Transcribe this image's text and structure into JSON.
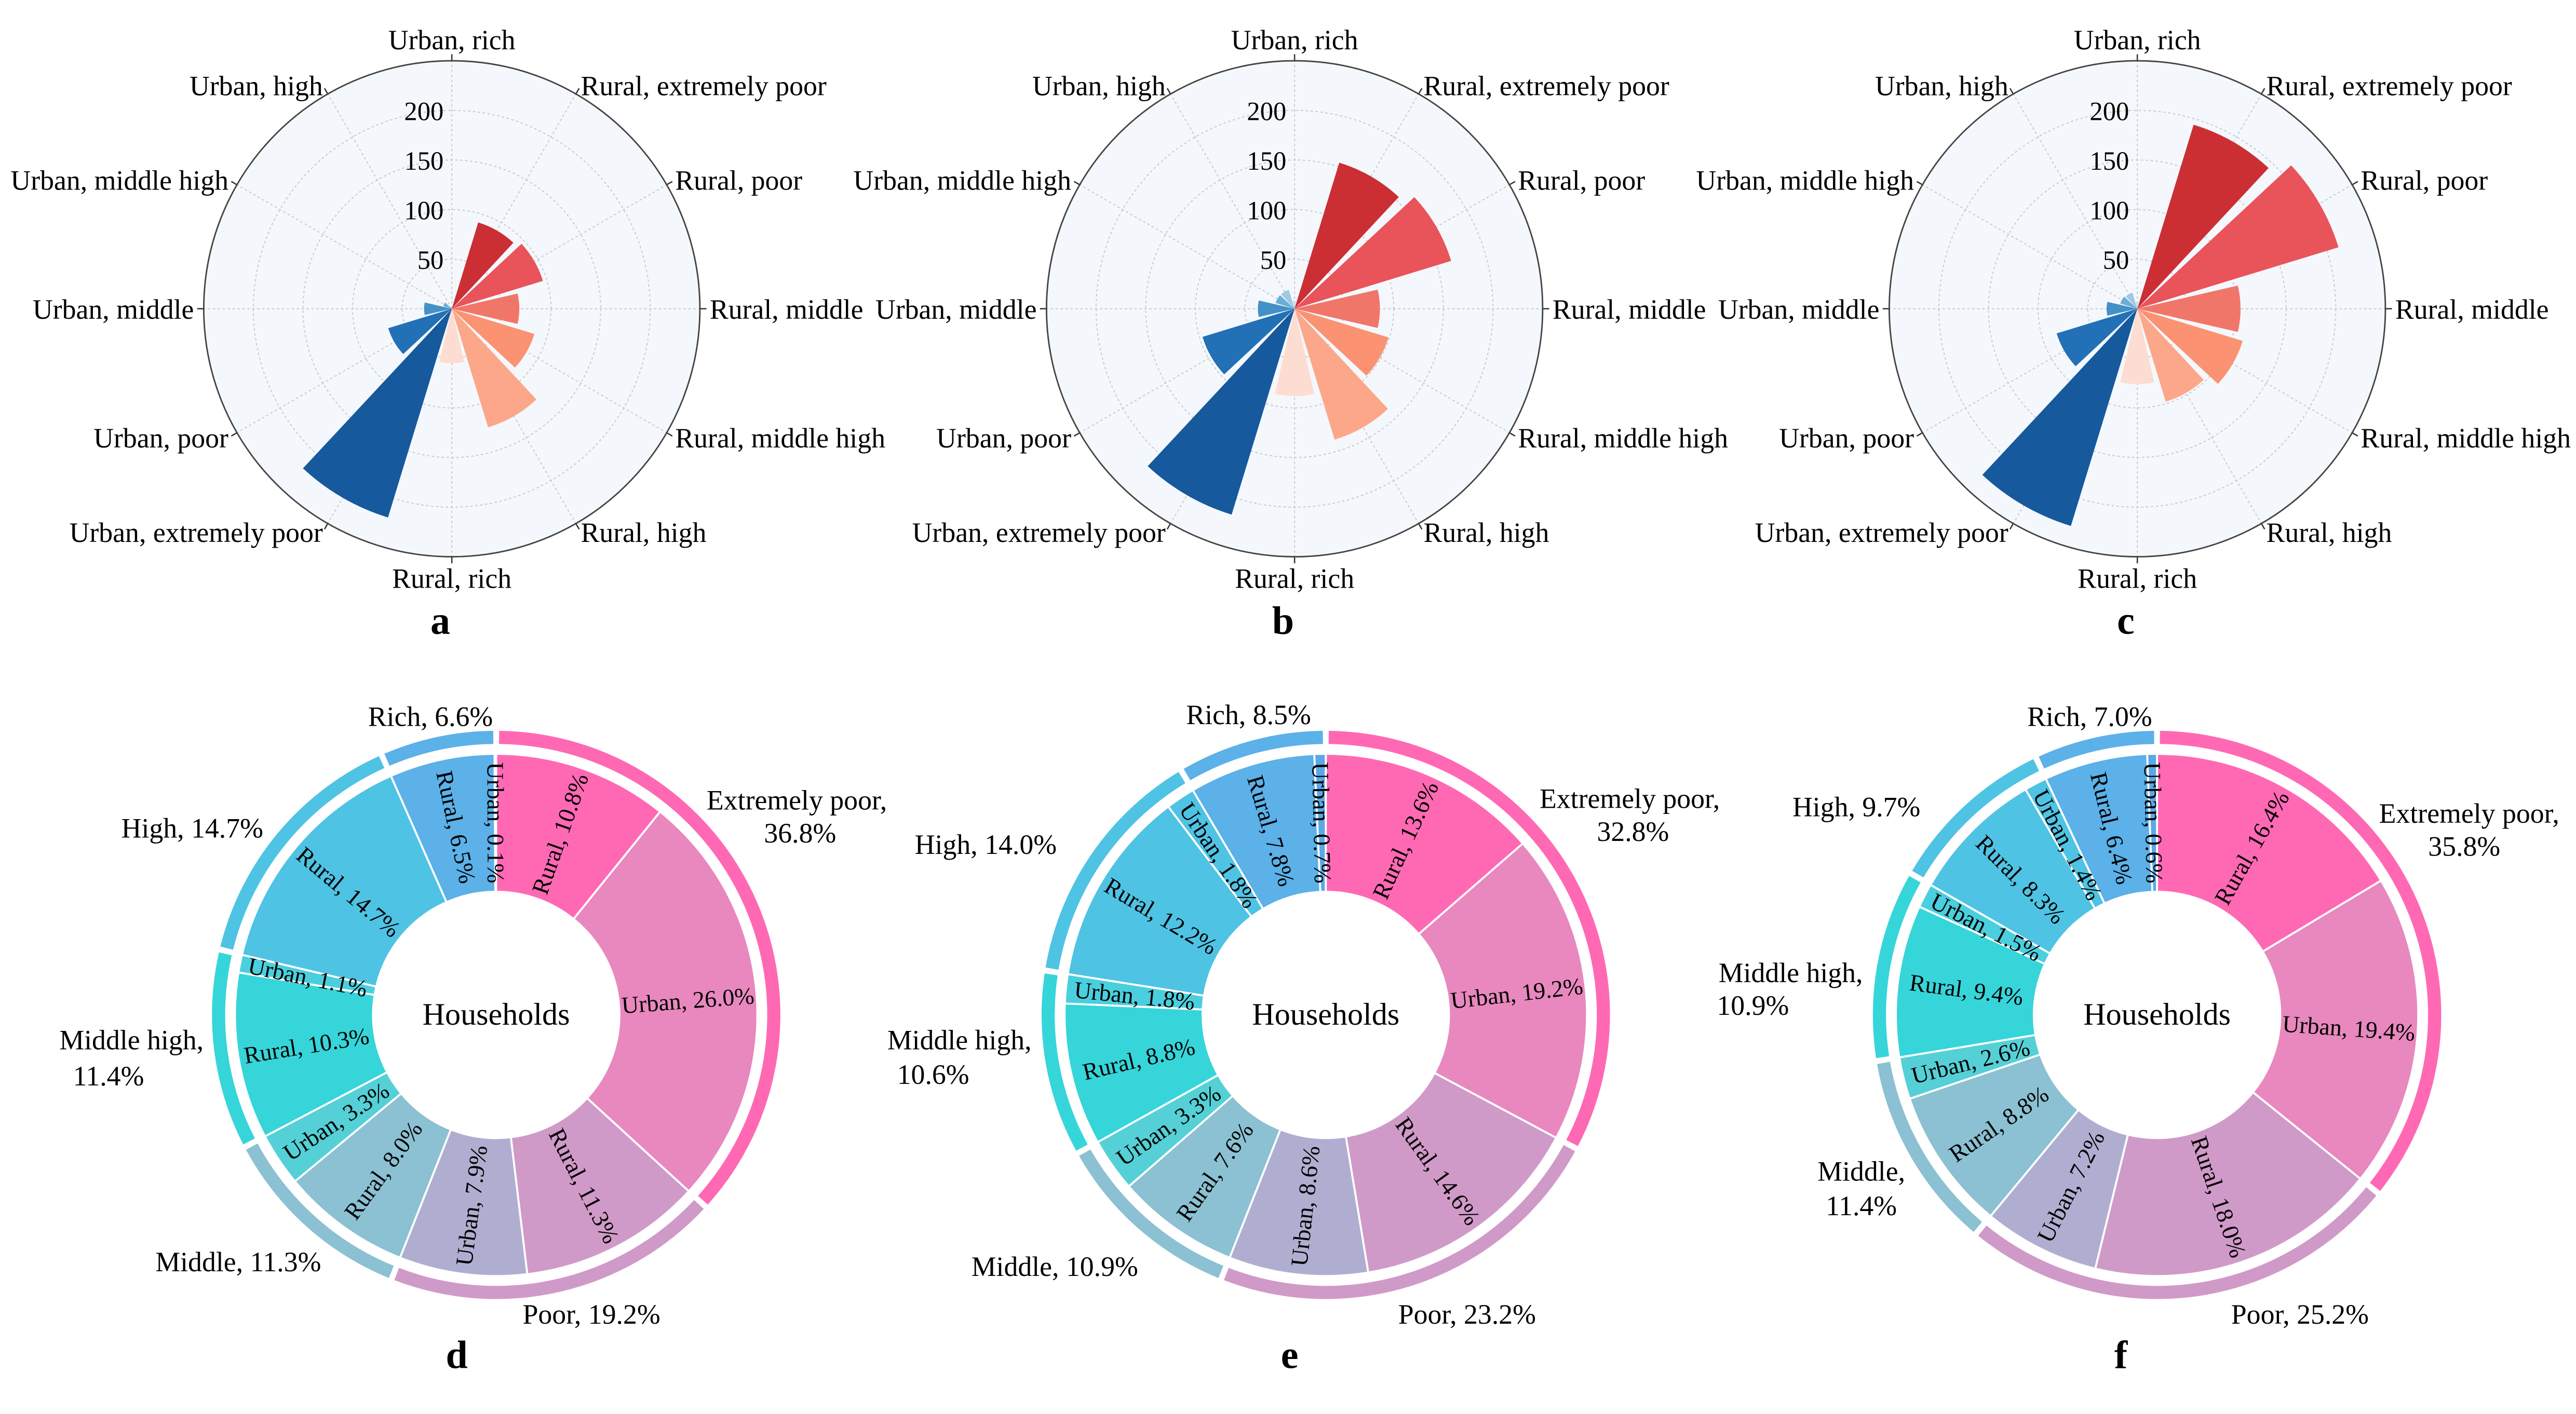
{
  "chart_data": [
    {
      "type": "bar",
      "projection": "polar",
      "panel": "a",
      "categories": [
        "Urban, rich",
        "Rural, extremely poor",
        "Rural, poor",
        "Rural, middle",
        "Rural, middle high",
        "Rural, high",
        "Rural, rich",
        "Urban, extremely poor",
        "Urban, poor",
        "Urban, middle",
        "Urban, middle high",
        "Urban, high"
      ],
      "values": [
        1,
        91,
        96,
        68,
        87,
        125,
        55,
        220,
        67,
        28,
        9,
        0
      ],
      "rticks": [
        "50",
        "100",
        "150",
        "200"
      ],
      "rlim": [
        0,
        250
      ],
      "grid": true
    },
    {
      "type": "bar",
      "projection": "polar",
      "panel": "b",
      "categories": [
        "Urban, rich",
        "Rural, extremely poor",
        "Rural, poor",
        "Rural, middle",
        "Rural, middle high",
        "Rural, high",
        "Rural, rich",
        "Urban, extremely poor",
        "Urban, poor",
        "Urban, middle",
        "Urban, middle high",
        "Urban, high"
      ],
      "values": [
        8,
        154,
        165,
        86,
        99,
        138,
        88,
        217,
        97,
        37,
        20,
        20
      ],
      "rticks": [
        "50",
        "100",
        "150",
        "200"
      ],
      "rlim": [
        0,
        250
      ],
      "grid": true
    },
    {
      "type": "bar",
      "projection": "polar",
      "panel": "c",
      "categories": [
        "Urban, rich",
        "Rural, extremely poor",
        "Rural, poor",
        "Rural, middle",
        "Rural, middle high",
        "Rural, high",
        "Rural, rich",
        "Urban, extremely poor",
        "Urban, poor",
        "Urban, middle",
        "Urban, middle high",
        "Urban, high"
      ],
      "values": [
        7,
        194,
        212,
        104,
        111,
        98,
        76,
        229,
        85,
        31,
        18,
        17
      ],
      "rticks": [
        "50",
        "100",
        "150",
        "200"
      ],
      "rlim": [
        0,
        250
      ],
      "grid": true
    },
    {
      "type": "pie",
      "style": "nested-donut",
      "panel": "d",
      "center_label": "Households",
      "groups": [
        {
          "label": [
            "Extremely poor,",
            "36.8%"
          ],
          "value": 36.8
        },
        {
          "label": [
            "Poor, 19.2%"
          ],
          "value": 19.2
        },
        {
          "label": [
            "Middle, 11.3%"
          ],
          "value": 11.3
        },
        {
          "label": [
            "Middle high,",
            "11.4%"
          ],
          "value": 11.4
        },
        {
          "label": [
            "High, 14.7%"
          ],
          "value": 14.7
        },
        {
          "label": [
            "Rich, 6.6%"
          ],
          "value": 6.6
        }
      ],
      "slices": [
        {
          "label": "Rural, 10.8%",
          "value": 10.8,
          "group": 0,
          "kind": "rural"
        },
        {
          "label": "Urban, 26.0%",
          "value": 26.0,
          "group": 0,
          "kind": "urban"
        },
        {
          "label": "Rural, 11.3%",
          "value": 11.3,
          "group": 1,
          "kind": "rural"
        },
        {
          "label": "Urban, 7.9%",
          "value": 7.9,
          "group": 1,
          "kind": "urban"
        },
        {
          "label": "Rural, 8.0%",
          "value": 8.0,
          "group": 2,
          "kind": "rural"
        },
        {
          "label": "Urban, 3.3%",
          "value": 3.3,
          "group": 2,
          "kind": "urban"
        },
        {
          "label": "Rural, 10.3%",
          "value": 10.3,
          "group": 3,
          "kind": "rural"
        },
        {
          "label": "Urban, 1.1%",
          "value": 1.1,
          "group": 3,
          "kind": "urban"
        },
        {
          "label": "Rural, 14.7%",
          "value": 14.7,
          "group": 4,
          "kind": "rural"
        },
        {
          "label": "Rural, 6.5%",
          "value": 6.5,
          "group": 5,
          "kind": "rural"
        },
        {
          "label": "Urban, 0.1%",
          "value": 0.1,
          "group": 5,
          "kind": "urban"
        }
      ]
    },
    {
      "type": "pie",
      "style": "nested-donut",
      "panel": "e",
      "center_label": "Households",
      "groups": [
        {
          "label": [
            "Extremely poor,",
            "32.8%"
          ],
          "value": 32.8
        },
        {
          "label": [
            "Poor, 23.2%"
          ],
          "value": 23.2
        },
        {
          "label": [
            "Middle, 10.9%"
          ],
          "value": 10.9
        },
        {
          "label": [
            "Middle high,",
            "10.6%"
          ],
          "value": 10.6
        },
        {
          "label": [
            "High, 14.0%"
          ],
          "value": 14.0
        },
        {
          "label": [
            "Rich, 8.5%"
          ],
          "value": 8.5
        }
      ],
      "slices": [
        {
          "label": "Rural, 13.6%",
          "value": 13.6,
          "group": 0,
          "kind": "rural"
        },
        {
          "label": "Urban, 19.2%",
          "value": 19.2,
          "group": 0,
          "kind": "urban"
        },
        {
          "label": "Rural, 14.6%",
          "value": 14.6,
          "group": 1,
          "kind": "rural"
        },
        {
          "label": "Urban, 8.6%",
          "value": 8.6,
          "group": 1,
          "kind": "urban"
        },
        {
          "label": "Rural, 7.6%",
          "value": 7.6,
          "group": 2,
          "kind": "rural"
        },
        {
          "label": "Urban, 3.3%",
          "value": 3.3,
          "group": 2,
          "kind": "urban"
        },
        {
          "label": "Rural, 8.8%",
          "value": 8.8,
          "group": 3,
          "kind": "rural"
        },
        {
          "label": "Urban, 1.8%",
          "value": 1.8,
          "group": 3,
          "kind": "urban"
        },
        {
          "label": "Rural, 12.2%",
          "value": 12.2,
          "group": 4,
          "kind": "rural"
        },
        {
          "label": "Urban, 1.8%",
          "value": 1.8,
          "group": 4,
          "kind": "urban"
        },
        {
          "label": "Rural, 7.8%",
          "value": 7.8,
          "group": 5,
          "kind": "rural"
        },
        {
          "label": "Urban, 0.7%",
          "value": 0.7,
          "group": 5,
          "kind": "urban"
        }
      ]
    },
    {
      "type": "pie",
      "style": "nested-donut",
      "panel": "f",
      "center_label": "Households",
      "groups": [
        {
          "label": [
            "Extremely poor,",
            "35.8%"
          ],
          "value": 35.8
        },
        {
          "label": [
            "Poor, 25.2%"
          ],
          "value": 25.2
        },
        {
          "label": [
            "Middle,",
            "11.4%"
          ],
          "value": 11.4
        },
        {
          "label": [
            "Middle high,",
            "10.9%"
          ],
          "value": 10.9
        },
        {
          "label": [
            "High, 9.7%"
          ],
          "value": 9.7
        },
        {
          "label": [
            "Rich, 7.0%"
          ],
          "value": 7.0
        }
      ],
      "slices": [
        {
          "label": "Rural, 16.4%",
          "value": 16.4,
          "group": 0,
          "kind": "rural"
        },
        {
          "label": "Urban, 19.4%",
          "value": 19.4,
          "group": 0,
          "kind": "urban"
        },
        {
          "label": "Rural, 18.0%",
          "value": 18.0,
          "group": 1,
          "kind": "rural"
        },
        {
          "label": "Urban, 7.2%",
          "value": 7.2,
          "group": 1,
          "kind": "urban"
        },
        {
          "label": "Rural, 8.8%",
          "value": 8.8,
          "group": 2,
          "kind": "rural"
        },
        {
          "label": "Urban, 2.6%",
          "value": 2.6,
          "group": 2,
          "kind": "urban"
        },
        {
          "label": "Rural, 9.4%",
          "value": 9.4,
          "group": 3,
          "kind": "rural"
        },
        {
          "label": "Urban, 1.5%",
          "value": 1.5,
          "group": 3,
          "kind": "urban"
        },
        {
          "label": "Rural, 8.3%",
          "value": 8.3,
          "group": 4,
          "kind": "rural"
        },
        {
          "label": "Urban, 1.4%",
          "value": 1.4,
          "group": 4,
          "kind": "urban"
        },
        {
          "label": "Rural, 6.4%",
          "value": 6.4,
          "group": 5,
          "kind": "rural"
        },
        {
          "label": "Urban, 0.6%",
          "value": 0.6,
          "group": 5,
          "kind": "urban"
        }
      ]
    }
  ],
  "colors": {
    "polar_background": "#F4F8FC",
    "polar_bars": [
      "#C6DBEF",
      "#CB2F34",
      "#E9535A",
      "#F1766A",
      "#FB9272",
      "#FCA78A",
      "#FDDDD1",
      "#16599D",
      "#2270B5",
      "#4292C7",
      "#6BAED6",
      "#9ECAE1"
    ],
    "donut_groups": [
      "#FF69B4",
      "#D09AC8",
      "#8BC1D2",
      "#36D5DA",
      "#4FC3E4",
      "#5BB1E8"
    ],
    "donut_rural": [
      "#FF69B4",
      "#D09AC8",
      "#8BC1D2",
      "#36D5DA",
      "#4FC3E4",
      "#5BB1E8"
    ],
    "donut_urban": [
      "#E888BE",
      "#B0AED0",
      "#55D0D6",
      "#4ACFDE",
      "#4FC3E4",
      "#5BA8E6"
    ]
  }
}
